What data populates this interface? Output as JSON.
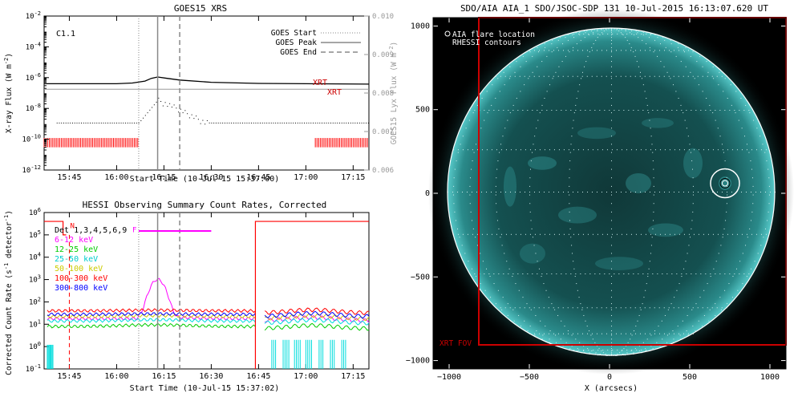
{
  "chart_data": [
    {
      "type": "line",
      "title": "GOES15 XRS",
      "xlabel": "Start Time (10-Jul-15 15:37:00)",
      "ylabel": "X-ray Flux (W m^-2)",
      "ylabel_right": "GOES15 Lyx Flux (W m^-2)",
      "ylog": true,
      "xlim": [
        "15:37",
        "17:20"
      ],
      "ylim": [
        1e-12,
        0.01
      ],
      "ylim_right": [
        0.006,
        0.01
      ],
      "xticks": [
        "15:45",
        "16:00",
        "16:15",
        "16:30",
        "16:45",
        "17:00",
        "17:15"
      ],
      "yticks": [
        "10^-12",
        "10^-10",
        "10^-8",
        "10^-6",
        "10^-4",
        "10^-2"
      ],
      "yticks_right": [
        "0.006",
        "0.007",
        "0.008",
        "0.009",
        "0.010"
      ],
      "flare_class": "C1.1",
      "legend": {
        "position": "top-right",
        "entries": [
          {
            "name": "GOES Start",
            "style": "dotted",
            "time": "16:07"
          },
          {
            "name": "GOES Peak",
            "style": "solid",
            "time": "16:13"
          },
          {
            "name": "GOES End",
            "style": "dashed",
            "time": "16:20"
          }
        ]
      },
      "xrt_label": "XRT",
      "xrt_coverage": [
        [
          "15:37",
          "16:07"
        ],
        [
          "17:03",
          "17:20"
        ]
      ],
      "series": [
        {
          "name": "",
          "color": "#000000",
          "x": [
            "15:37",
            "16:00",
            "16:05",
            "16:09",
            "16:11",
            "16:13",
            "16:16",
            "16:20",
            "16:30",
            "16:45",
            "17:00",
            "17:20"
          ],
          "y": [
            4e-07,
            4e-07,
            4.5e-07,
            6e-07,
            9e-07,
            1.1e-06,
            9e-07,
            7e-07,
            5e-07,
            4.2e-07,
            4e-07,
            3.8e-07
          ]
        },
        {
          "name": "",
          "color": "#a0a0a0",
          "x": [
            "15:37",
            "17:20"
          ],
          "y": [
            0.0081,
            0.0081
          ]
        }
      ]
    },
    {
      "type": "line",
      "title": "HESSI Observing Summary Count Rates, Corrected",
      "xlabel": "Start Time (10-Jul-15 15:37:02)",
      "ylabel": "Corrected Count Rate (s^-1 detector^-1)",
      "ylog": true,
      "xlim": [
        "15:37",
        "17:20"
      ],
      "ylim": [
        0.1,
        1000000.0
      ],
      "xticks": [
        "15:45",
        "16:00",
        "16:15",
        "16:30",
        "16:45",
        "17:00",
        "17:15"
      ],
      "yticks": [
        "10^-1",
        "10^0",
        "10^1",
        "10^2",
        "10^3",
        "10^4",
        "10^5",
        "10^6"
      ],
      "detectors": "Det 1,3,4,5,6,9",
      "flags": {
        "N": "15:45",
        "F": "16:07"
      },
      "series": [
        {
          "name": "6-12 keV",
          "color": "#ff00ff"
        },
        {
          "name": "12-25 keV",
          "color": "#00cc00"
        },
        {
          "name": "25-50 keV",
          "color": "#00dddd"
        },
        {
          "name": "50-100 keV",
          "color": "#cccc00"
        },
        {
          "name": "100-300 keV",
          "color": "#ff0000"
        },
        {
          "name": "300-800 keV",
          "color": "#0000ff"
        }
      ]
    },
    {
      "type": "heatmap",
      "title": "SDO/AIA AIA_1 SDO/JSOC-SDP 131 10-Jul-2015 16:13:07.620 UT",
      "xlabel": "X (arcsecs)",
      "ylabel": "",
      "xlim": [
        -1100,
        1100
      ],
      "ylim": [
        -1050,
        1050
      ],
      "xticks": [
        "-1000",
        "-500",
        "0",
        "500",
        "1000"
      ],
      "yticks": [
        "-1000",
        "-500",
        "0",
        "500",
        "1000"
      ],
      "legend": {
        "position": "top-left",
        "entries": [
          "AIA flare location",
          "RHESSI contours"
        ]
      },
      "fov_label": "XRT FOV",
      "flare_location": {
        "x": 720,
        "y": 60
      }
    }
  ]
}
